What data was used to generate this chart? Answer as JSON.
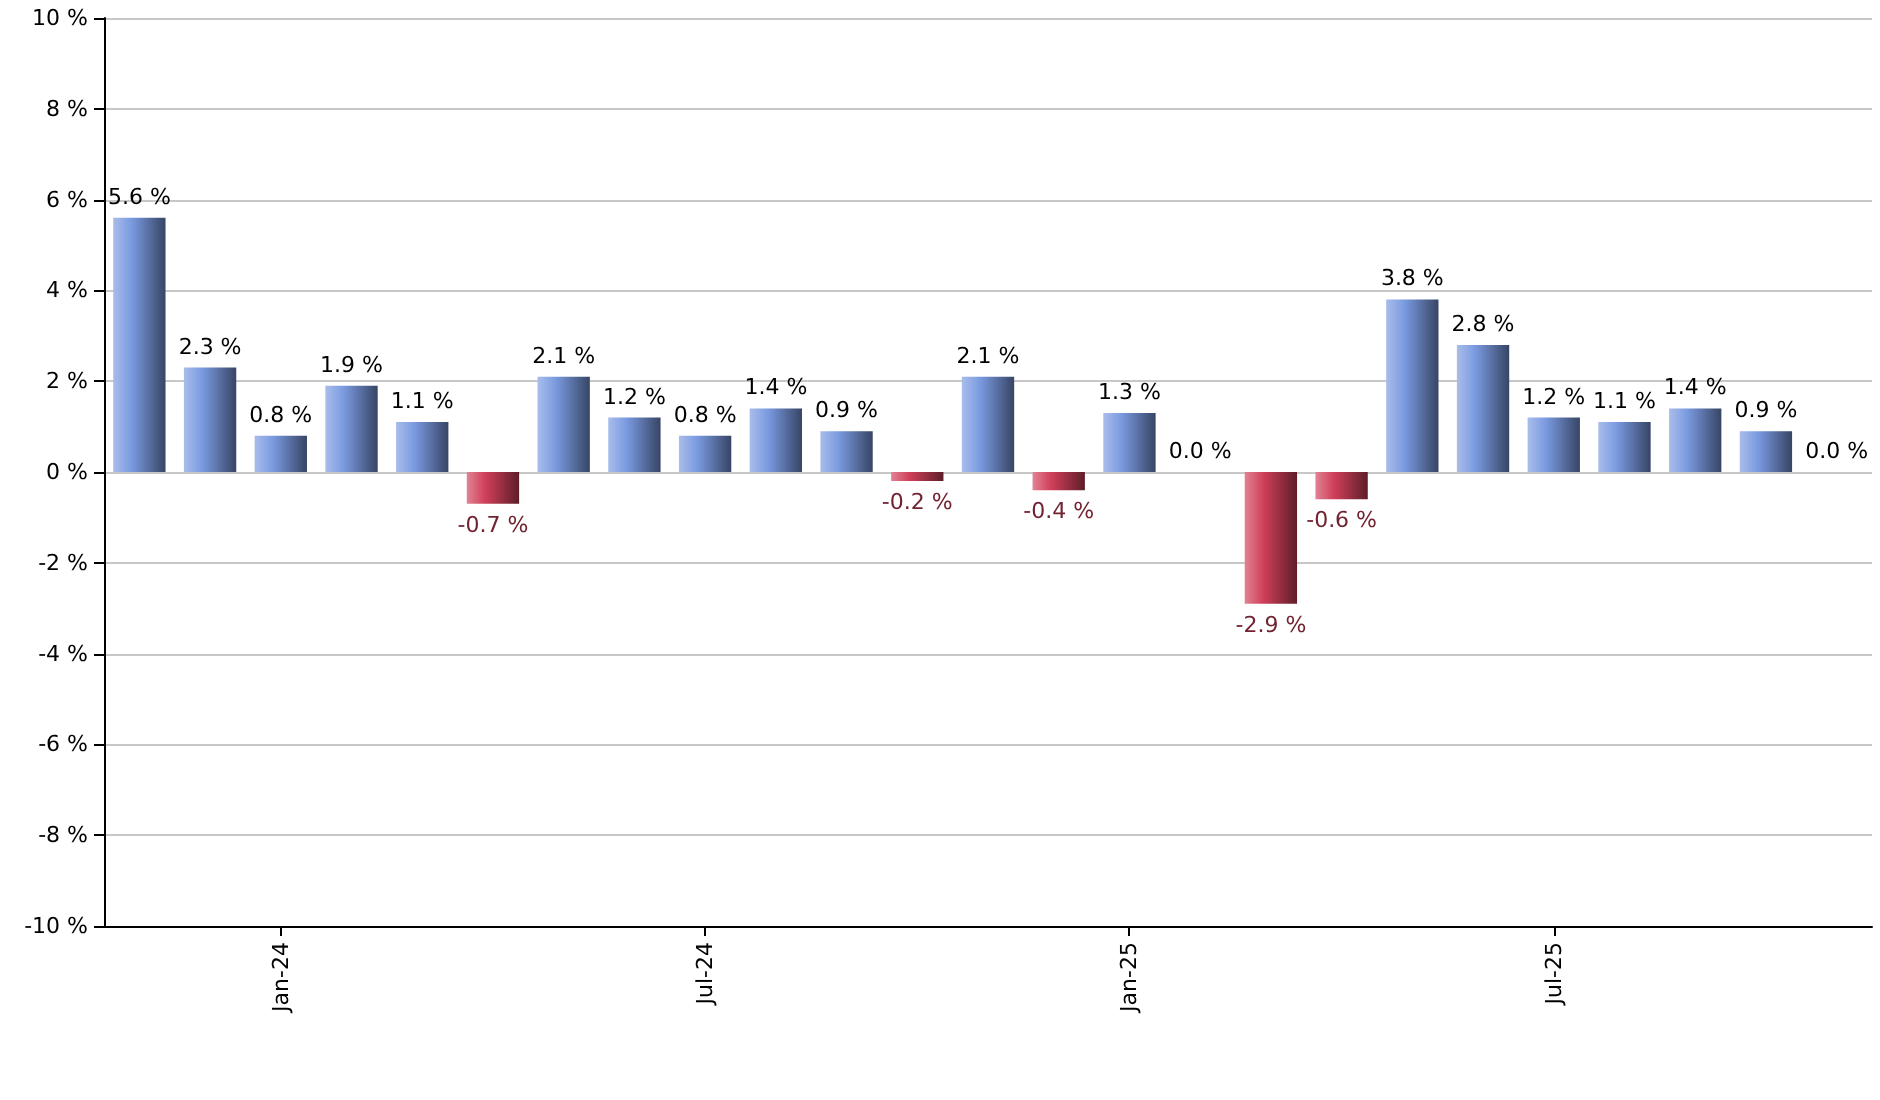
{
  "chart_data": {
    "type": "bar",
    "categories": [
      null,
      null,
      "Jan-24",
      null,
      null,
      null,
      null,
      null,
      "Jul-24",
      null,
      null,
      null,
      null,
      null,
      "Jan-25",
      null,
      null,
      null,
      null,
      null,
      "Jul-25",
      null,
      null,
      null,
      null
    ],
    "values": [
      5.6,
      2.3,
      0.8,
      1.9,
      1.1,
      -0.7,
      2.1,
      1.2,
      0.8,
      1.4,
      0.9,
      -0.2,
      2.1,
      -0.4,
      1.3,
      0.0,
      -2.9,
      -0.6,
      3.8,
      2.8,
      1.2,
      1.1,
      1.4,
      0.9,
      0.0
    ],
    "value_labels": [
      "5.6 %",
      "2.3 %",
      "0.8 %",
      "1.9 %",
      "1.1 %",
      "-0.7 %",
      "2.1 %",
      "1.2 %",
      "0.8 %",
      "1.4 %",
      "0.9 %",
      "-0.2 %",
      "2.1 %",
      "-0.4 %",
      "1.3 %",
      "0.0 %",
      "-2.9 %",
      "-0.6 %",
      "3.8 %",
      "2.8 %",
      "1.2 %",
      "1.1 %",
      "1.4 %",
      "0.9 %",
      "0.0 %"
    ],
    "colors": [
      "#7a9ae0",
      "#7a9ae0",
      "#7a9ae0",
      "#7a9ae0",
      "#7a9ae0",
      "#d0405a",
      "#7a9ae0",
      "#7a9ae0",
      "#7a9ae0",
      "#7a9ae0",
      "#7a9ae0",
      "#d0405a",
      "#7a9ae0",
      "#d0405a",
      "#7a9ae0",
      "#d0405a",
      "#d0405a",
      "#d0405a",
      "#7a9ae0",
      "#7a9ae0",
      "#7a9ae0",
      "#7a9ae0",
      "#7a9ae0",
      "#7a9ae0",
      "#7a9ae0"
    ],
    "ylim": [
      -10,
      10
    ],
    "yticks": [
      {
        "value": -10,
        "label": "-10 %"
      },
      {
        "value": -8,
        "label": "-8 %"
      },
      {
        "value": -6,
        "label": "-6 %"
      },
      {
        "value": -4,
        "label": "-4 %"
      },
      {
        "value": -2,
        "label": "-2 %"
      },
      {
        "value": 0,
        "label": "0 %"
      },
      {
        "value": 2,
        "label": "2 %"
      },
      {
        "value": 4,
        "label": "4 %"
      },
      {
        "value": 6,
        "label": "6 %"
      },
      {
        "value": 8,
        "label": "8 %"
      },
      {
        "value": 10,
        "label": "10 %"
      }
    ],
    "grid": "y"
  }
}
